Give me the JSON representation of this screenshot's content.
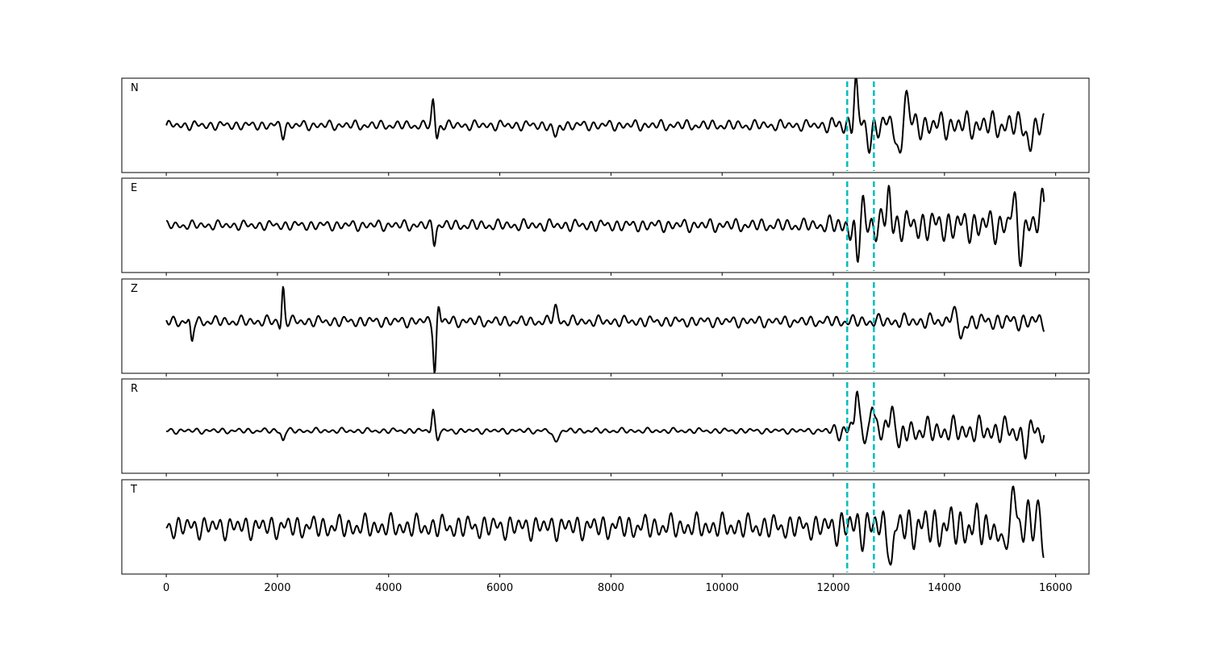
{
  "chart_data": {
    "type": "line",
    "title": "",
    "xlabel": "",
    "ylabel": "",
    "xlim": [
      -800,
      16600
    ],
    "x_ticks": [
      0,
      2000,
      4000,
      6000,
      8000,
      10000,
      12000,
      14000,
      16000
    ],
    "x_tick_labels": [
      "0",
      "2000",
      "4000",
      "6000",
      "8000",
      "10000",
      "12000",
      "14000",
      "16000"
    ],
    "grid": false,
    "legend": "none",
    "trace_color": "#000000",
    "marker_color": "#00BFBF",
    "vertical_markers": [
      12250,
      12730
    ],
    "x_start": 0,
    "x_end": 15800,
    "panels": [
      {
        "label": "N",
        "ylim": [
          -1.0,
          1.0
        ],
        "features": [
          {
            "x": 2100,
            "amp": -0.2,
            "w": 40
          },
          {
            "x": 4800,
            "amp": 0.5,
            "w": 35
          },
          {
            "x": 4870,
            "amp": -0.25,
            "w": 35
          },
          {
            "x": 7000,
            "amp": -0.25,
            "w": 60
          },
          {
            "x": 12400,
            "amp": 0.95,
            "w": 45
          },
          {
            "x": 12650,
            "amp": -0.35,
            "w": 60
          },
          {
            "x": 13200,
            "amp": -0.8,
            "w": 60
          },
          {
            "x": 13300,
            "amp": 0.8,
            "w": 60
          },
          {
            "x": 15550,
            "amp": -0.4,
            "w": 70
          }
        ],
        "noise": [
          [
            0,
            0.1
          ],
          [
            11800,
            0.12
          ],
          [
            12300,
            0.3
          ],
          [
            15800,
            0.3
          ]
        ]
      },
      {
        "label": "E",
        "ylim": [
          -1.0,
          1.0
        ],
        "features": [
          {
            "x": 4820,
            "amp": -0.35,
            "w": 35
          },
          {
            "x": 12430,
            "amp": -0.9,
            "w": 45
          },
          {
            "x": 12530,
            "amp": 0.55,
            "w": 45
          },
          {
            "x": 13000,
            "amp": 0.75,
            "w": 45
          },
          {
            "x": 15250,
            "amp": 0.55,
            "w": 60
          },
          {
            "x": 15350,
            "amp": -0.55,
            "w": 60
          },
          {
            "x": 15780,
            "amp": 0.5,
            "w": 60
          }
        ],
        "noise": [
          [
            0,
            0.1
          ],
          [
            11800,
            0.15
          ],
          [
            12300,
            0.35
          ],
          [
            15800,
            0.38
          ]
        ]
      },
      {
        "label": "Z",
        "ylim": [
          -1.1,
          0.9
        ],
        "features": [
          {
            "x": 460,
            "amp": -0.45,
            "w": 35
          },
          {
            "x": 2100,
            "amp": 0.75,
            "w": 35
          },
          {
            "x": 2060,
            "amp": -0.2,
            "w": 35
          },
          {
            "x": 4830,
            "amp": -1.05,
            "w": 35
          },
          {
            "x": 4900,
            "amp": 0.3,
            "w": 35
          },
          {
            "x": 7000,
            "amp": 0.3,
            "w": 50
          },
          {
            "x": 14300,
            "amp": -0.35,
            "w": 60
          },
          {
            "x": 14150,
            "amp": 0.25,
            "w": 60
          }
        ],
        "noise": [
          [
            0,
            0.12
          ],
          [
            11800,
            0.12
          ],
          [
            12300,
            0.14
          ],
          [
            15800,
            0.2
          ]
        ]
      },
      {
        "label": "R",
        "ylim": [
          -0.9,
          1.1
        ],
        "features": [
          {
            "x": 2100,
            "amp": -0.2,
            "w": 40
          },
          {
            "x": 4800,
            "amp": 0.45,
            "w": 35
          },
          {
            "x": 4880,
            "amp": -0.2,
            "w": 35
          },
          {
            "x": 7000,
            "amp": -0.25,
            "w": 60
          },
          {
            "x": 12420,
            "amp": 0.9,
            "w": 45
          },
          {
            "x": 12700,
            "amp": 0.55,
            "w": 45
          },
          {
            "x": 13050,
            "amp": 0.65,
            "w": 50
          },
          {
            "x": 13200,
            "amp": -0.4,
            "w": 50
          },
          {
            "x": 15450,
            "amp": -0.35,
            "w": 70
          }
        ],
        "noise": [
          [
            0,
            0.06
          ],
          [
            11800,
            0.06
          ],
          [
            12300,
            0.28
          ],
          [
            15800,
            0.3
          ]
        ]
      },
      {
        "label": "T",
        "ylim": [
          -1.0,
          1.0
        ],
        "features": [
          {
            "x": 13050,
            "amp": -0.85,
            "w": 45
          },
          {
            "x": 15250,
            "amp": 0.9,
            "w": 55
          },
          {
            "x": 15050,
            "amp": -0.75,
            "w": 55
          },
          {
            "x": 15700,
            "amp": 0.6,
            "w": 55
          },
          {
            "x": 15790,
            "amp": -0.85,
            "w": 45
          }
        ],
        "noise": [
          [
            0,
            0.25
          ],
          [
            11800,
            0.28
          ],
          [
            12300,
            0.45
          ],
          [
            15800,
            0.5
          ]
        ]
      }
    ]
  }
}
